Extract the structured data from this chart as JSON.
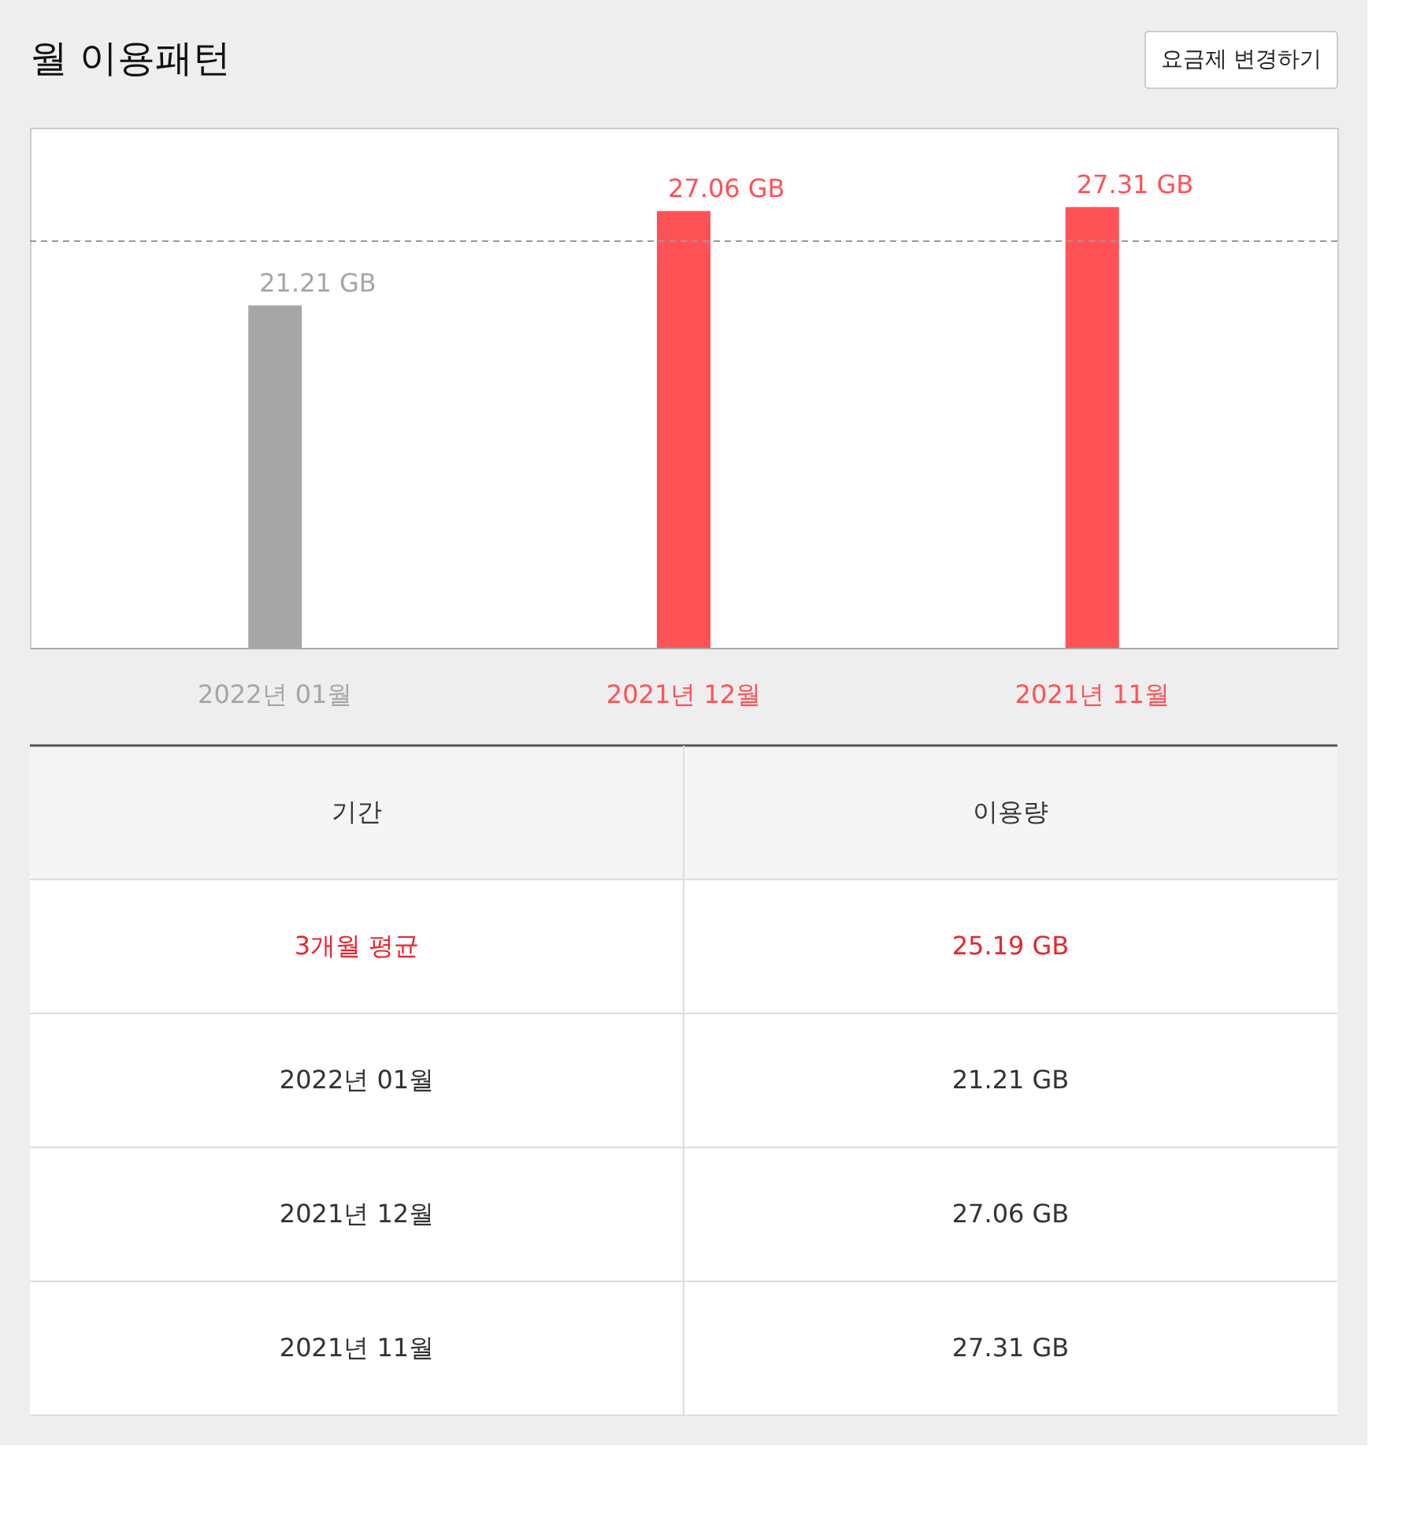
{
  "chart_data": {
    "type": "bar",
    "title": "월 이용패턴",
    "categories": [
      "2022년 01월",
      "2021년 12월",
      "2021년 11월"
    ],
    "values": [
      21.21,
      27.06,
      27.31
    ],
    "colors": [
      "#a6a6a6",
      "#ff5257",
      "#ff5257"
    ],
    "value_labels": [
      "21.21 GB",
      "27.06 GB",
      "27.31 GB"
    ],
    "ref_lines": [
      {
        "axis": "y",
        "value": 25.19,
        "color": "#999999",
        "line_style": "dashed"
      }
    ],
    "annotations": [
      "요금제 변경하기",
      "기간",
      "이용량",
      "3개월 평균",
      "25.19 GB"
    ]
  }
}
